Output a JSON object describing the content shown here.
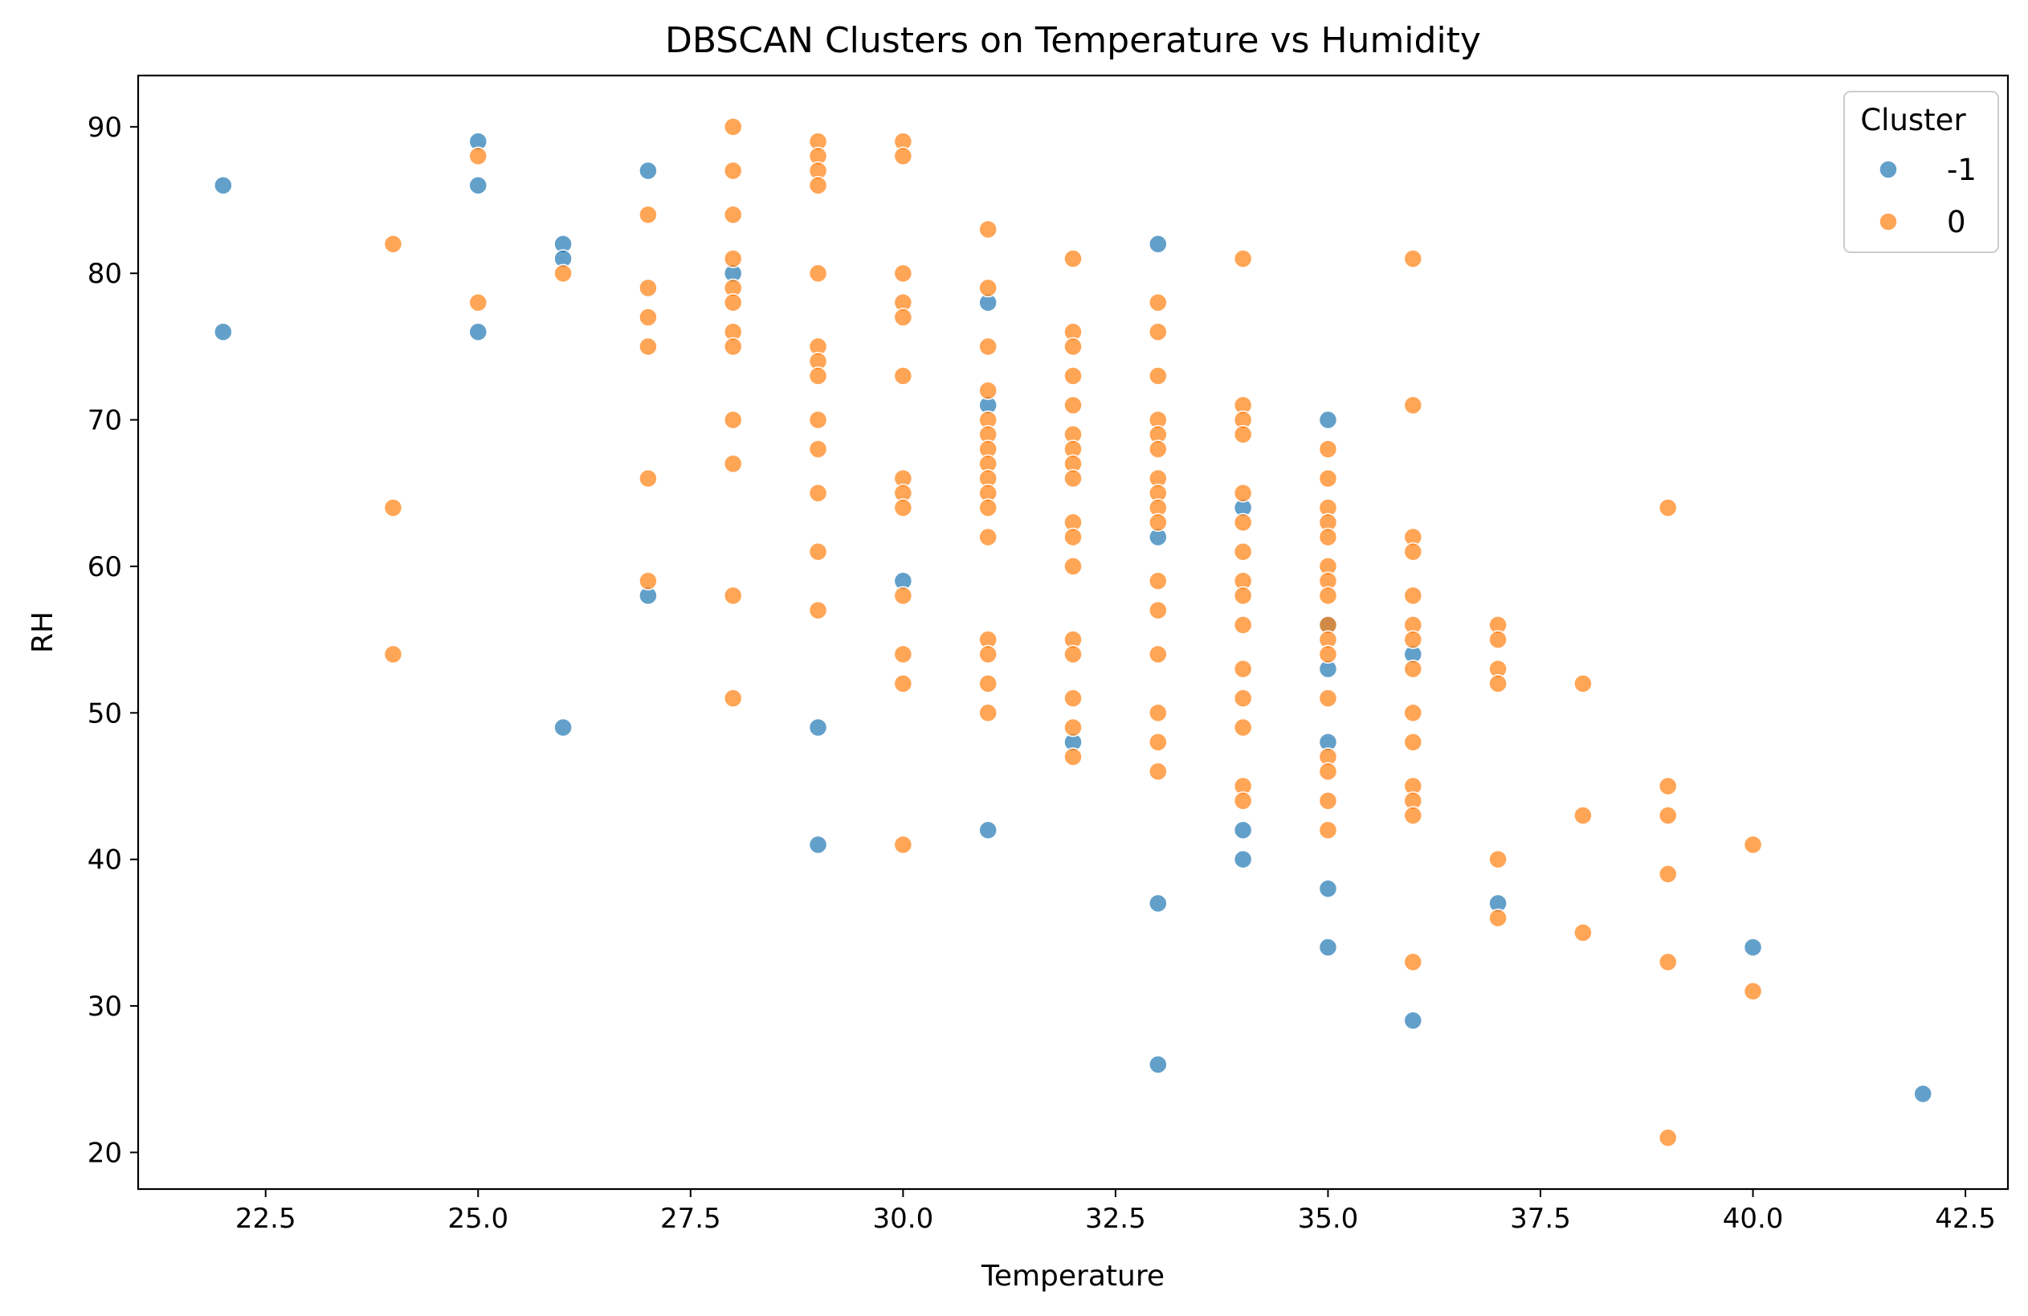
{
  "chart_data": {
    "type": "scatter",
    "title": "DBSCAN Clusters on Temperature vs Humidity",
    "xlabel": "Temperature",
    "ylabel": "RH",
    "xlim": [
      21.0,
      43.0
    ],
    "ylim": [
      17.5,
      93.5
    ],
    "x_ticks": [
      "22.5",
      "25.0",
      "27.5",
      "30.0",
      "32.5",
      "35.0",
      "37.5",
      "40.0",
      "42.5"
    ],
    "y_ticks": [
      "20",
      "30",
      "40",
      "50",
      "60",
      "70",
      "80",
      "90"
    ],
    "grid": false,
    "legend": {
      "title": "Cluster",
      "placement": "top-right"
    },
    "series": [
      {
        "name": "-1",
        "color": "#1f77b4",
        "points": [
          [
            22,
            86
          ],
          [
            22,
            76
          ],
          [
            25,
            89
          ],
          [
            25,
            86
          ],
          [
            25,
            76
          ],
          [
            26,
            82
          ],
          [
            26,
            81
          ],
          [
            26,
            49
          ],
          [
            27,
            87
          ],
          [
            27,
            58
          ],
          [
            28,
            80
          ],
          [
            29,
            49
          ],
          [
            29,
            41
          ],
          [
            30,
            59
          ],
          [
            31,
            78
          ],
          [
            31,
            71
          ],
          [
            31,
            42
          ],
          [
            32,
            48
          ],
          [
            33,
            82
          ],
          [
            33,
            62
          ],
          [
            33,
            37
          ],
          [
            33,
            26
          ],
          [
            34,
            64
          ],
          [
            34,
            42
          ],
          [
            34,
            40
          ],
          [
            35,
            70
          ],
          [
            35,
            56
          ],
          [
            35,
            53
          ],
          [
            35,
            48
          ],
          [
            35,
            38
          ],
          [
            35,
            34
          ],
          [
            36,
            54
          ],
          [
            36,
            29
          ],
          [
            37,
            37
          ],
          [
            40,
            34
          ],
          [
            42,
            24
          ]
        ]
      },
      {
        "name": "0",
        "color": "#ff7f0e",
        "points": [
          [
            24,
            82
          ],
          [
            24,
            64
          ],
          [
            24,
            54
          ],
          [
            25,
            88
          ],
          [
            25,
            78
          ],
          [
            26,
            80
          ],
          [
            27,
            84
          ],
          [
            27,
            79
          ],
          [
            27,
            77
          ],
          [
            27,
            75
          ],
          [
            27,
            66
          ],
          [
            27,
            59
          ],
          [
            28,
            90
          ],
          [
            28,
            87
          ],
          [
            28,
            84
          ],
          [
            28,
            81
          ],
          [
            28,
            79
          ],
          [
            28,
            78
          ],
          [
            28,
            76
          ],
          [
            28,
            75
          ],
          [
            28,
            70
          ],
          [
            28,
            67
          ],
          [
            28,
            58
          ],
          [
            28,
            51
          ],
          [
            29,
            89
          ],
          [
            29,
            88
          ],
          [
            29,
            87
          ],
          [
            29,
            86
          ],
          [
            29,
            80
          ],
          [
            29,
            75
          ],
          [
            29,
            74
          ],
          [
            29,
            73
          ],
          [
            29,
            70
          ],
          [
            29,
            68
          ],
          [
            29,
            65
          ],
          [
            29,
            61
          ],
          [
            29,
            57
          ],
          [
            30,
            89
          ],
          [
            30,
            88
          ],
          [
            30,
            80
          ],
          [
            30,
            78
          ],
          [
            30,
            77
          ],
          [
            30,
            73
          ],
          [
            30,
            66
          ],
          [
            30,
            65
          ],
          [
            30,
            64
          ],
          [
            30,
            58
          ],
          [
            30,
            54
          ],
          [
            30,
            52
          ],
          [
            30,
            41
          ],
          [
            31,
            83
          ],
          [
            31,
            79
          ],
          [
            31,
            75
          ],
          [
            31,
            72
          ],
          [
            31,
            70
          ],
          [
            31,
            69
          ],
          [
            31,
            68
          ],
          [
            31,
            67
          ],
          [
            31,
            66
          ],
          [
            31,
            65
          ],
          [
            31,
            64
          ],
          [
            31,
            62
          ],
          [
            31,
            55
          ],
          [
            31,
            54
          ],
          [
            31,
            52
          ],
          [
            31,
            50
          ],
          [
            32,
            81
          ],
          [
            32,
            76
          ],
          [
            32,
            75
          ],
          [
            32,
            73
          ],
          [
            32,
            71
          ],
          [
            32,
            69
          ],
          [
            32,
            68
          ],
          [
            32,
            67
          ],
          [
            32,
            66
          ],
          [
            32,
            63
          ],
          [
            32,
            62
          ],
          [
            32,
            60
          ],
          [
            32,
            55
          ],
          [
            32,
            54
          ],
          [
            32,
            51
          ],
          [
            32,
            49
          ],
          [
            32,
            47
          ],
          [
            33,
            78
          ],
          [
            33,
            76
          ],
          [
            33,
            73
          ],
          [
            33,
            70
          ],
          [
            33,
            69
          ],
          [
            33,
            68
          ],
          [
            33,
            66
          ],
          [
            33,
            65
          ],
          [
            33,
            64
          ],
          [
            33,
            63
          ],
          [
            33,
            59
          ],
          [
            33,
            57
          ],
          [
            33,
            54
          ],
          [
            33,
            50
          ],
          [
            33,
            48
          ],
          [
            33,
            46
          ],
          [
            34,
            81
          ],
          [
            34,
            71
          ],
          [
            34,
            70
          ],
          [
            34,
            69
          ],
          [
            34,
            65
          ],
          [
            34,
            63
          ],
          [
            34,
            61
          ],
          [
            34,
            59
          ],
          [
            34,
            58
          ],
          [
            34,
            56
          ],
          [
            34,
            53
          ],
          [
            34,
            51
          ],
          [
            34,
            49
          ],
          [
            34,
            45
          ],
          [
            34,
            44
          ],
          [
            35,
            68
          ],
          [
            35,
            66
          ],
          [
            35,
            64
          ],
          [
            35,
            63
          ],
          [
            35,
            62
          ],
          [
            35,
            60
          ],
          [
            35,
            59
          ],
          [
            35,
            58
          ],
          [
            35,
            56
          ],
          [
            35,
            55
          ],
          [
            35,
            54
          ],
          [
            35,
            51
          ],
          [
            35,
            47
          ],
          [
            35,
            46
          ],
          [
            35,
            44
          ],
          [
            35,
            42
          ],
          [
            36,
            81
          ],
          [
            36,
            71
          ],
          [
            36,
            62
          ],
          [
            36,
            61
          ],
          [
            36,
            58
          ],
          [
            36,
            56
          ],
          [
            36,
            55
          ],
          [
            36,
            53
          ],
          [
            36,
            50
          ],
          [
            36,
            48
          ],
          [
            36,
            45
          ],
          [
            36,
            44
          ],
          [
            36,
            43
          ],
          [
            36,
            33
          ],
          [
            37,
            56
          ],
          [
            37,
            55
          ],
          [
            37,
            53
          ],
          [
            37,
            52
          ],
          [
            37,
            40
          ],
          [
            37,
            36
          ],
          [
            38,
            52
          ],
          [
            38,
            43
          ],
          [
            38,
            35
          ],
          [
            39,
            64
          ],
          [
            39,
            45
          ],
          [
            39,
            43
          ],
          [
            39,
            39
          ],
          [
            39,
            33
          ],
          [
            39,
            21
          ],
          [
            40,
            41
          ],
          [
            40,
            31
          ]
        ]
      }
    ]
  }
}
